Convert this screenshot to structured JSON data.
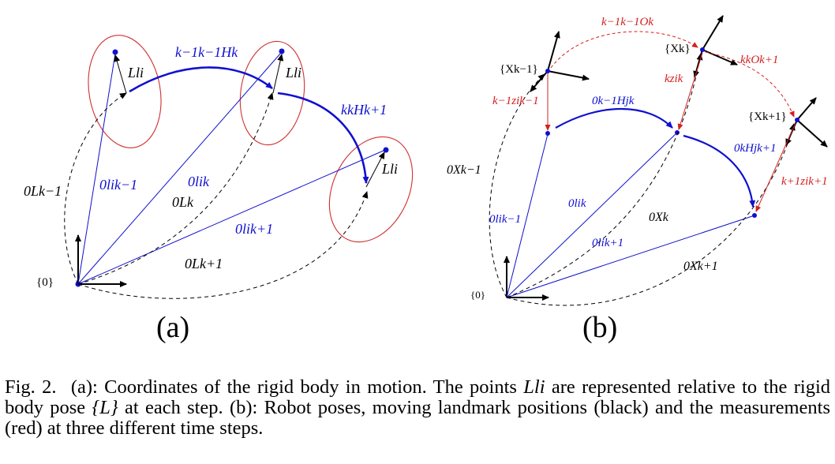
{
  "panel_a": {
    "sublabel": "(a)",
    "origin_label": "{0}",
    "labels": {
      "H_k": "k−1k−1Hk",
      "H_k1": "kkHk+1",
      "Ll_1": "Lli",
      "Ll_2": "Lli",
      "Ll_3": "Lli",
      "L_km1": "0Lk−1",
      "L_k": "0Lk",
      "L_k1": "0Lk+1",
      "l_km1": "0lik−1",
      "l_k": "0lik",
      "l_k1": "0lik+1"
    }
  },
  "panel_b": {
    "sublabel": "(b)",
    "origin_label": "{0}",
    "labels": {
      "X_km1_frame": "{Xk−1}",
      "X_k_frame": "{Xk}",
      "X_k1_frame": "{Xk+1}",
      "O_k": "k−1k−1Ok",
      "O_k1": "kkOk+1",
      "z_km1": "k−1zik−1",
      "z_k": "kzik",
      "z_k1": "k+1zik+1",
      "H_k": "0k−1Hjk",
      "H_k1": "0kHjk+1",
      "X_km1": "0Xk−1",
      "X_k": "0Xk",
      "X_k1": "0Xk+1",
      "l_km1": "0lik−1",
      "l_k": "0lik",
      "l_k1": "0lik+1"
    }
  },
  "caption": {
    "lead": "Fig. 2.",
    "text_1": "(a): Coordinates of the rigid body in motion. The points ",
    "symbol_1": "Lli",
    "text_2": " are represented relative to the rigid body pose ",
    "symbol_2": "{L}",
    "text_3": " at each step. (b): Robot poses, moving landmark positions (black) and the measurements (red) at three different time steps."
  },
  "colors": {
    "blue": "#1010d0",
    "red": "#d42020",
    "ellipse": "#d03030",
    "black": "#000000"
  }
}
